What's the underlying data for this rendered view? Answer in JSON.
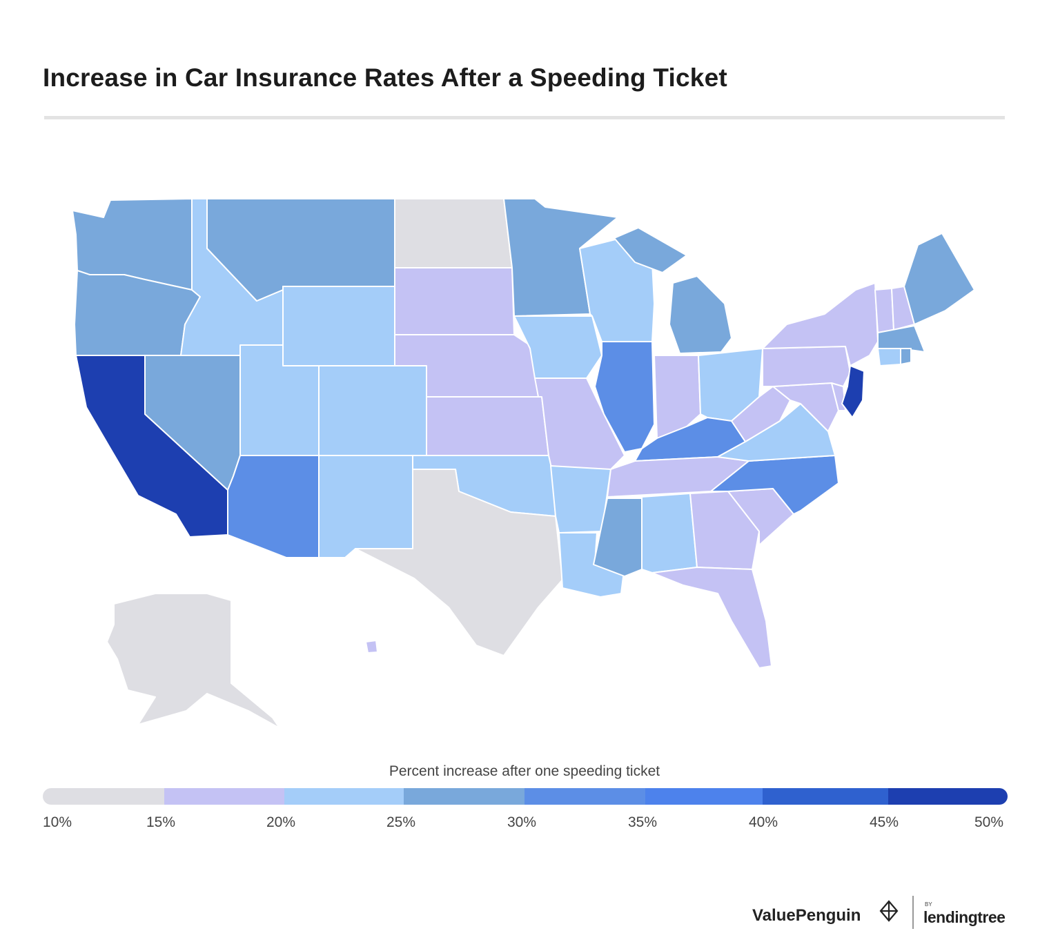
{
  "title": "Increase in Car Insurance Rates After a Speeding Ticket",
  "legend": {
    "title": "Percent increase after one speeding ticket",
    "ticks": [
      "10%",
      "15%",
      "20%",
      "25%",
      "30%",
      "35%",
      "40%",
      "45%",
      "50%"
    ],
    "bins": [
      {
        "from": 10,
        "to": 15,
        "color": "#dedee3"
      },
      {
        "from": 15,
        "to": 20,
        "color": "#c4c2f4"
      },
      {
        "from": 20,
        "to": 25,
        "color": "#a4cdf9"
      },
      {
        "from": 25,
        "to": 30,
        "color": "#79a8db"
      },
      {
        "from": 30,
        "to": 35,
        "color": "#5c8ee6"
      },
      {
        "from": 35,
        "to": 40,
        "color": "#4d82ec"
      },
      {
        "from": 40,
        "to": 45,
        "color": "#2f61cf"
      },
      {
        "from": 45,
        "to": 50,
        "color": "#1d3fb0"
      }
    ]
  },
  "chart_data": {
    "type": "choropleth",
    "value_unit": "percent increase after one speeding ticket",
    "scale": {
      "min": 10,
      "max": 50
    },
    "states": {
      "WA": 27,
      "OR": 27,
      "CA": 47,
      "NV": 27,
      "ID": 22,
      "MT": 27,
      "WY": 22,
      "UT": 22,
      "AZ": 33,
      "CO": 22,
      "NM": 22,
      "ND": 12,
      "SD": 17,
      "NE": 17,
      "KS": 17,
      "OK": 22,
      "TX": 12,
      "MN": 27,
      "IA": 22,
      "MO": 17,
      "AR": 22,
      "LA": 22,
      "WI": 22,
      "IL": 33,
      "MS": 27,
      "MI": 27,
      "IN": 17,
      "OH": 22,
      "KY": 33,
      "TN": 17,
      "AL": 22,
      "GA": 17,
      "FL": 17,
      "SC": 17,
      "NC": 33,
      "VA": 22,
      "WV": 17,
      "MD": 17,
      "DE": 17,
      "PA": 17,
      "NJ": 48,
      "NY": 17,
      "CT": 22,
      "RI": 27,
      "MA": 27,
      "VT": 17,
      "NH": 17,
      "ME": 27,
      "AK": 12,
      "HI": 17
    }
  },
  "brand": {
    "name": "ValuePenguin",
    "by": "BY",
    "parent": "lendingtree"
  }
}
